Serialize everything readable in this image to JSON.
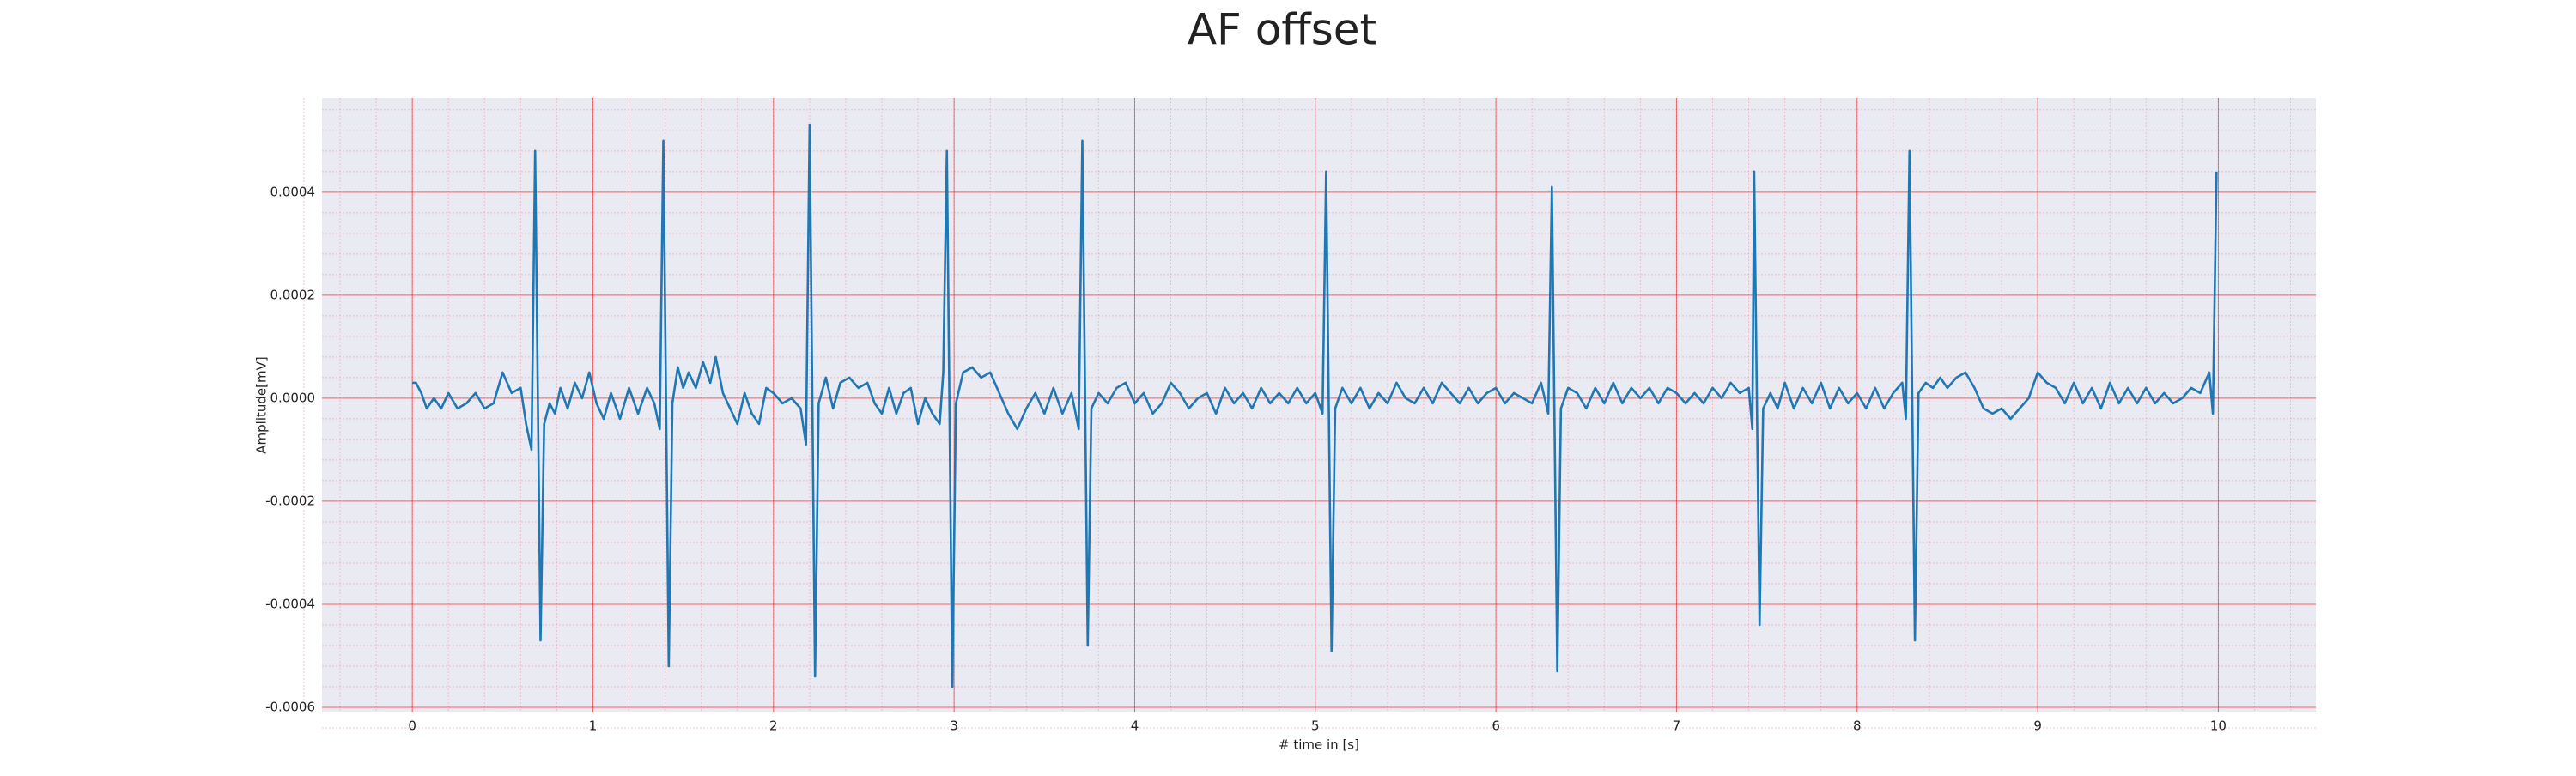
{
  "chart_data": {
    "type": "line",
    "title": "AF offset",
    "xlabel": "# time in [s]",
    "ylabel": "Amplitude[mV]",
    "x": [
      0,
      0.02,
      0.05,
      0.08,
      0.12,
      0.16,
      0.2,
      0.25,
      0.3,
      0.35,
      0.4,
      0.45,
      0.5,
      0.55,
      0.6,
      0.63,
      0.66,
      0.68,
      0.71,
      0.73,
      0.76,
      0.79,
      0.82,
      0.86,
      0.9,
      0.94,
      0.98,
      1.02,
      1.06,
      1.1,
      1.15,
      1.2,
      1.25,
      1.3,
      1.34,
      1.37,
      1.39,
      1.42,
      1.44,
      1.47,
      1.5,
      1.53,
      1.57,
      1.61,
      1.65,
      1.68,
      1.72,
      1.76,
      1.8,
      1.84,
      1.88,
      1.92,
      1.96,
      2.0,
      2.05,
      2.1,
      2.15,
      2.18,
      2.2,
      2.23,
      2.25,
      2.29,
      2.33,
      2.37,
      2.42,
      2.47,
      2.52,
      2.56,
      2.6,
      2.64,
      2.68,
      2.72,
      2.76,
      2.8,
      2.84,
      2.88,
      2.92,
      2.94,
      2.96,
      2.99,
      3.01,
      3.05,
      3.1,
      3.15,
      3.2,
      3.25,
      3.3,
      3.35,
      3.4,
      3.45,
      3.5,
      3.55,
      3.6,
      3.65,
      3.69,
      3.71,
      3.74,
      3.76,
      3.8,
      3.85,
      3.9,
      3.95,
      4.0,
      4.05,
      4.1,
      4.15,
      4.2,
      4.25,
      4.3,
      4.35,
      4.4,
      4.45,
      4.5,
      4.55,
      4.6,
      4.65,
      4.7,
      4.75,
      4.8,
      4.85,
      4.9,
      4.95,
      5.0,
      5.04,
      5.06,
      5.09,
      5.11,
      5.15,
      5.2,
      5.25,
      5.3,
      5.35,
      5.4,
      5.45,
      5.5,
      5.55,
      5.6,
      5.65,
      5.7,
      5.75,
      5.8,
      5.85,
      5.9,
      5.95,
      6.0,
      6.05,
      6.1,
      6.15,
      6.2,
      6.25,
      6.29,
      6.31,
      6.34,
      6.36,
      6.4,
      6.45,
      6.5,
      6.55,
      6.6,
      6.65,
      6.7,
      6.75,
      6.8,
      6.85,
      6.9,
      6.95,
      7.0,
      7.05,
      7.1,
      7.15,
      7.2,
      7.25,
      7.3,
      7.35,
      7.4,
      7.42,
      7.43,
      7.46,
      7.48,
      7.52,
      7.56,
      7.6,
      7.65,
      7.7,
      7.75,
      7.8,
      7.85,
      7.9,
      7.95,
      8.0,
      8.05,
      8.1,
      8.15,
      8.2,
      8.25,
      8.27,
      8.29,
      8.32,
      8.34,
      8.38,
      8.42,
      8.46,
      8.5,
      8.55,
      8.6,
      8.65,
      8.7,
      8.75,
      8.8,
      8.85,
      8.9,
      8.95,
      9.0,
      9.05,
      9.1,
      9.15,
      9.2,
      9.25,
      9.3,
      9.35,
      9.4,
      9.45,
      9.5,
      9.55,
      9.6,
      9.65,
      9.7,
      9.75,
      9.8,
      9.85,
      9.9,
      9.95,
      9.97,
      9.99
    ],
    "values": [
      3e-05,
      3e-05,
      1e-05,
      -2e-05,
      0,
      -2e-05,
      1e-05,
      -2e-05,
      -1e-05,
      1e-05,
      -2e-05,
      -1e-05,
      5e-05,
      1e-05,
      2e-05,
      -5e-05,
      -0.0001,
      0.00048,
      -0.00047,
      -5e-05,
      -1e-05,
      -3e-05,
      2e-05,
      -2e-05,
      3e-05,
      0,
      5e-05,
      -1e-05,
      -4e-05,
      1e-05,
      -4e-05,
      2e-05,
      -3e-05,
      2e-05,
      -1e-05,
      -6e-05,
      0.0005,
      -0.00052,
      -1e-05,
      6e-05,
      2e-05,
      5e-05,
      2e-05,
      7e-05,
      3e-05,
      8e-05,
      1e-05,
      -2e-05,
      -5e-05,
      1e-05,
      -3e-05,
      -5e-05,
      2e-05,
      1e-05,
      -1e-05,
      0,
      -2e-05,
      -9e-05,
      0.00053,
      -0.00054,
      -1e-05,
      4e-05,
      -2e-05,
      3e-05,
      4e-05,
      2e-05,
      3e-05,
      -1e-05,
      -3e-05,
      2e-05,
      -3e-05,
      1e-05,
      2e-05,
      -5e-05,
      0,
      -3e-05,
      -5e-05,
      5e-05,
      0.00048,
      -0.00056,
      -1e-05,
      5e-05,
      6e-05,
      4e-05,
      5e-05,
      1e-05,
      -3e-05,
      -6e-05,
      -2e-05,
      1e-05,
      -3e-05,
      2e-05,
      -3e-05,
      1e-05,
      -6e-05,
      0.0005,
      -0.00048,
      -2e-05,
      1e-05,
      -1e-05,
      2e-05,
      3e-05,
      -1e-05,
      1e-05,
      -3e-05,
      -1e-05,
      3e-05,
      1e-05,
      -2e-05,
      0,
      1e-05,
      -3e-05,
      2e-05,
      -1e-05,
      1e-05,
      -2e-05,
      2e-05,
      -1e-05,
      1e-05,
      -1e-05,
      2e-05,
      -1e-05,
      1e-05,
      -3e-05,
      0.00044,
      -0.00049,
      -2e-05,
      2e-05,
      -1e-05,
      2e-05,
      -2e-05,
      1e-05,
      -1e-05,
      3e-05,
      0,
      -1e-05,
      2e-05,
      -1e-05,
      3e-05,
      1e-05,
      -1e-05,
      2e-05,
      -1e-05,
      1e-05,
      2e-05,
      -1e-05,
      1e-05,
      0,
      -1e-05,
      3e-05,
      -3e-05,
      0.00041,
      -0.00053,
      -2e-05,
      2e-05,
      1e-05,
      -2e-05,
      2e-05,
      -1e-05,
      3e-05,
      -1e-05,
      2e-05,
      0,
      2e-05,
      -1e-05,
      2e-05,
      1e-05,
      -1e-05,
      1e-05,
      -1e-05,
      2e-05,
      0,
      3e-05,
      1e-05,
      2e-05,
      -6e-05,
      0.00044,
      -0.00044,
      -2e-05,
      1e-05,
      -2e-05,
      3e-05,
      -2e-05,
      2e-05,
      -1e-05,
      3e-05,
      -2e-05,
      2e-05,
      -1e-05,
      1e-05,
      -2e-05,
      2e-05,
      -2e-05,
      1e-05,
      3e-05,
      -4e-05,
      0.00048,
      -0.00047,
      1e-05,
      3e-05,
      2e-05,
      4e-05,
      2e-05,
      4e-05,
      5e-05,
      2e-05,
      -2e-05,
      -3e-05,
      -2e-05,
      -4e-05,
      -2e-05,
      0,
      5e-05,
      3e-05,
      2e-05,
      -1e-05,
      3e-05,
      -1e-05,
      2e-05,
      -2e-05,
      3e-05,
      -1e-05,
      2e-05,
      -1e-05,
      2e-05,
      -1e-05,
      1e-05,
      -1e-05,
      0,
      2e-05,
      1e-05,
      5e-05,
      -3e-05,
      0.00044
    ],
    "color": "#1f77b4",
    "xlim": [
      -0.5,
      10.54
    ],
    "xticks": [
      0,
      1,
      2,
      3,
      4,
      5,
      6,
      7,
      8,
      9,
      10
    ],
    "ylim": [
      -0.00061,
      0.000583
    ],
    "yticks": [
      {
        "value": -0.0006,
        "label": "-0.0006"
      },
      {
        "value": -0.0004,
        "label": "-0.0004"
      },
      {
        "value": -0.0002,
        "label": "-0.0002"
      },
      {
        "value": 0,
        "label": "0.0000"
      },
      {
        "value": 0.0002,
        "label": "0.0002"
      },
      {
        "value": 0.0004,
        "label": "0.0004"
      }
    ],
    "grid": true,
    "minor_grid_divisions": 5
  }
}
